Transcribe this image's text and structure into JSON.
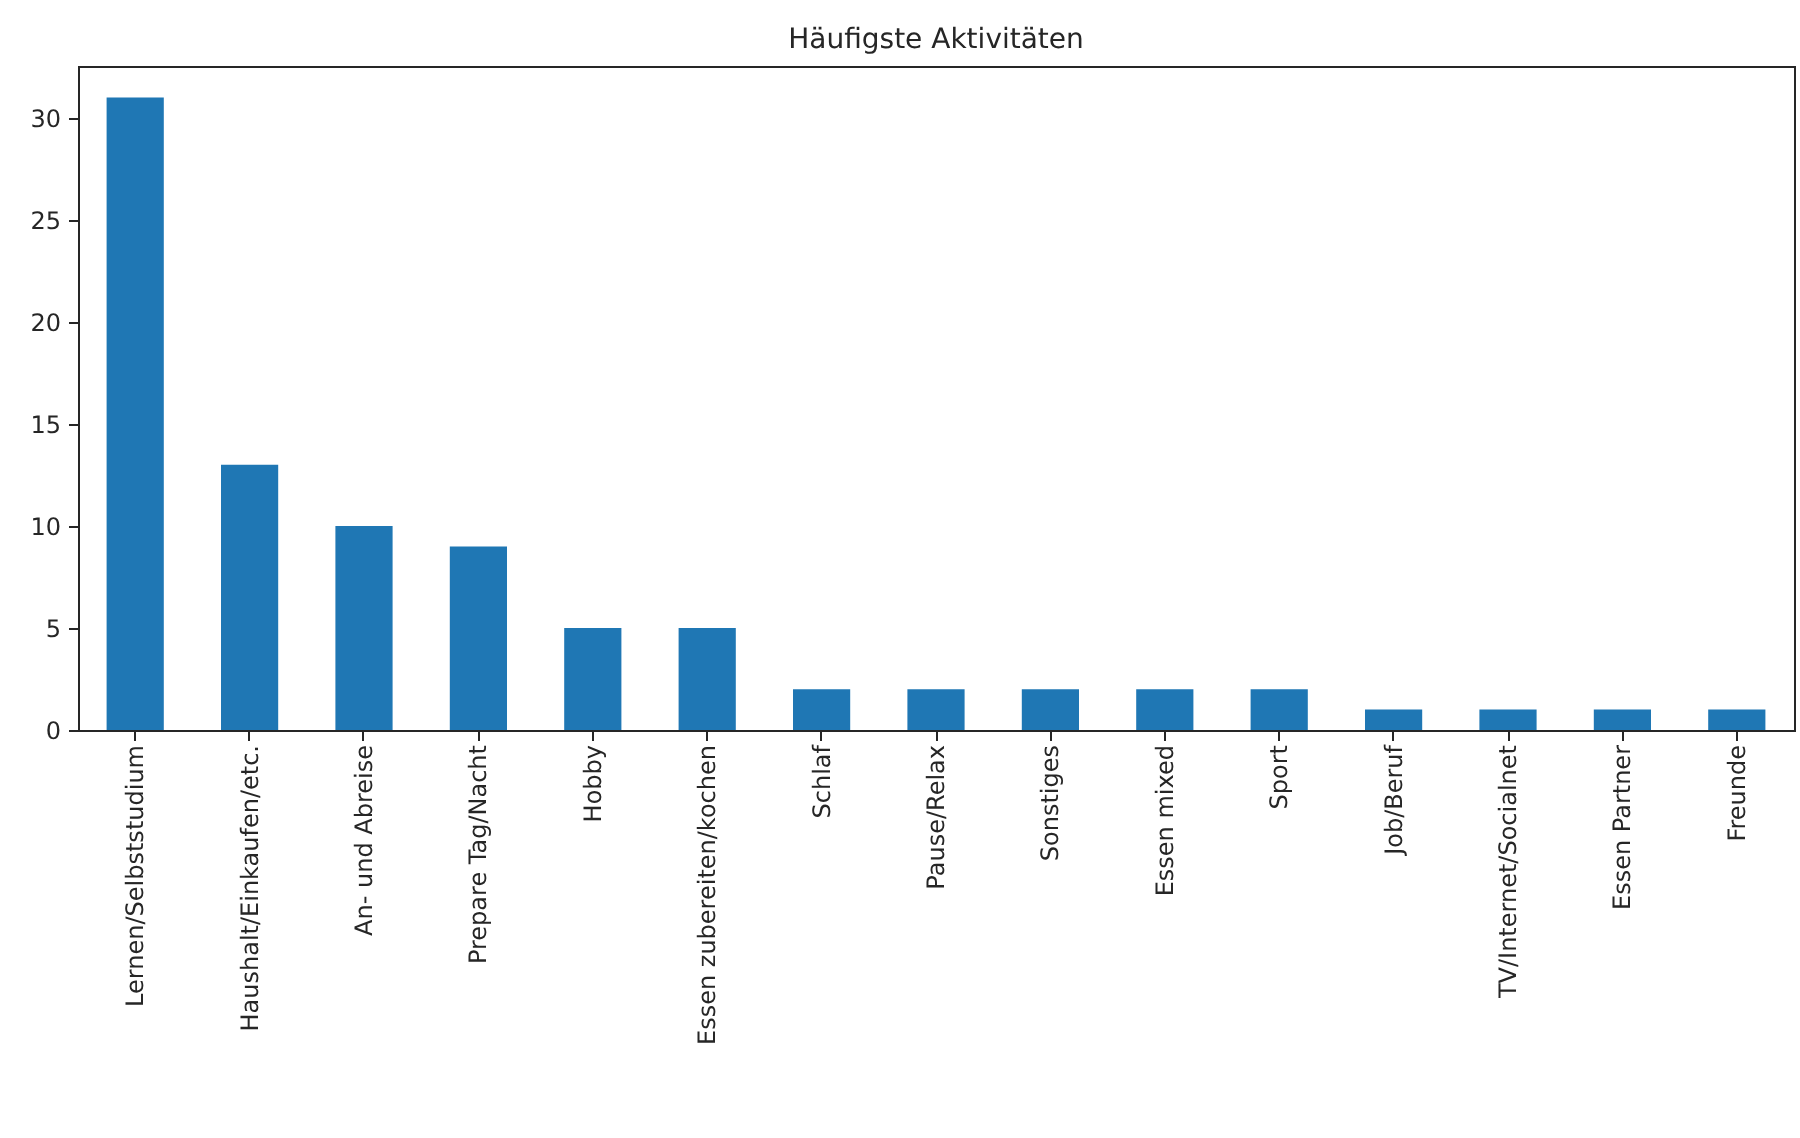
{
  "chart_data": {
    "type": "bar",
    "title": "Häufigste Aktivitäten",
    "categories": [
      "Lernen/Selbststudium",
      "Haushalt/Einkaufen/etc.",
      "An- und Abreise",
      "Prepare Tag/Nacht",
      "Hobby",
      "Essen zubereiten/kochen",
      "Schlaf",
      "Pause/Relax",
      "Sonstiges",
      "Essen mixed",
      "Sport",
      "Job/Beruf",
      "TV/Internet/Socialnet",
      "Essen Partner",
      "Freunde"
    ],
    "values": [
      31,
      13,
      10,
      9,
      5,
      5,
      2,
      2,
      2,
      2,
      2,
      1,
      1,
      1,
      1
    ],
    "color": "#1f77b4",
    "ylim": [
      0,
      32.55
    ],
    "yticks": [
      0,
      5,
      10,
      15,
      20,
      25,
      30
    ],
    "grid": false
  }
}
